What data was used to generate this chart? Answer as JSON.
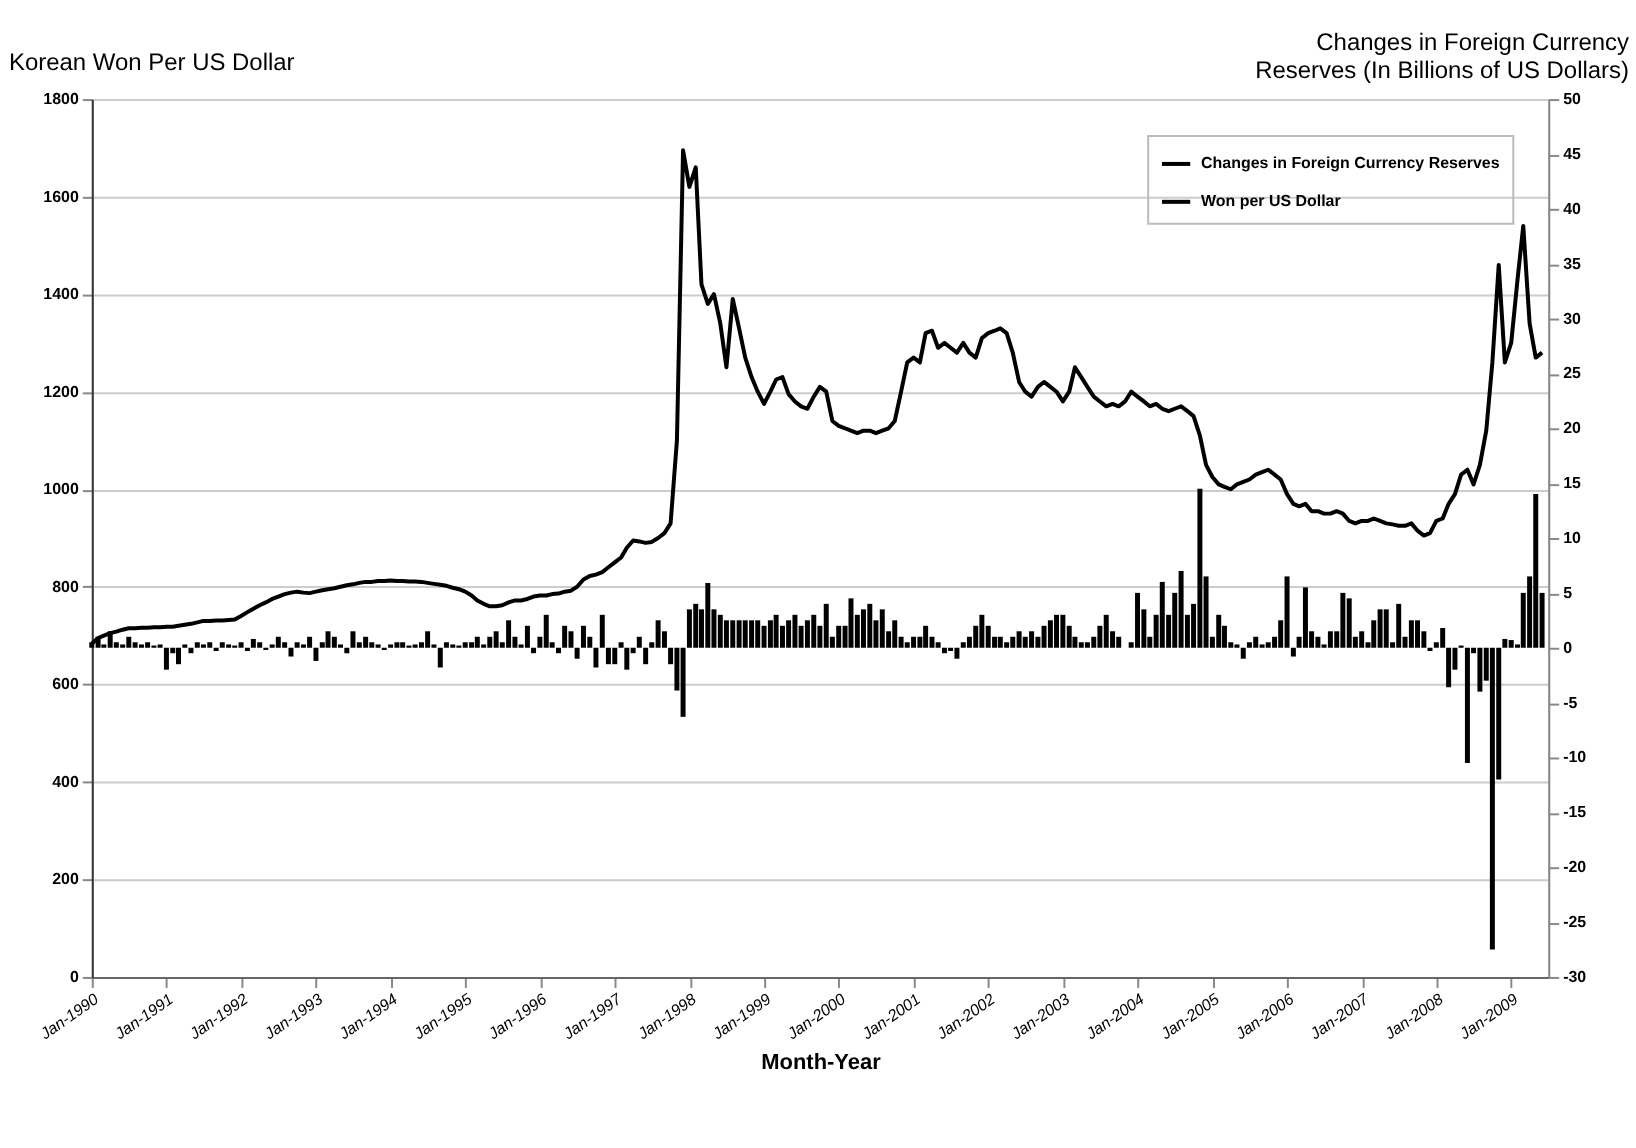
{
  "chart_data": {
    "type": "bar",
    "ylabel": "Korean Won Per US Dollar",
    "y2label": "Changes in Foreign Currency Reserves (In Billions of US Dollars)",
    "xlabel": "Month-Year",
    "x": [
      "1990-01",
      "1990-02",
      "1990-03",
      "1990-04",
      "1990-05",
      "1990-06",
      "1990-07",
      "1990-08",
      "1990-09",
      "1990-10",
      "1990-11",
      "1990-12",
      "1991-01",
      "1991-02",
      "1991-03",
      "1991-04",
      "1991-05",
      "1991-06",
      "1991-07",
      "1991-08",
      "1991-09",
      "1991-10",
      "1991-11",
      "1991-12",
      "1992-01",
      "1992-02",
      "1992-03",
      "1992-04",
      "1992-05",
      "1992-06",
      "1992-07",
      "1992-08",
      "1992-09",
      "1992-10",
      "1992-11",
      "1992-12",
      "1993-01",
      "1993-02",
      "1993-03",
      "1993-04",
      "1993-05",
      "1993-06",
      "1993-07",
      "1993-08",
      "1993-09",
      "1993-10",
      "1993-11",
      "1993-12",
      "1994-01",
      "1994-02",
      "1994-03",
      "1994-04",
      "1994-05",
      "1994-06",
      "1994-07",
      "1994-08",
      "1994-09",
      "1994-10",
      "1994-11",
      "1994-12",
      "1995-01",
      "1995-02",
      "1995-03",
      "1995-04",
      "1995-05",
      "1995-06",
      "1995-07",
      "1995-08",
      "1995-09",
      "1995-10",
      "1995-11",
      "1995-12",
      "1996-01",
      "1996-02",
      "1996-03",
      "1996-04",
      "1996-05",
      "1996-06",
      "1996-07",
      "1996-08",
      "1996-09",
      "1996-10",
      "1996-11",
      "1996-12",
      "1997-01",
      "1997-02",
      "1997-03",
      "1997-04",
      "1997-05",
      "1997-06",
      "1997-07",
      "1997-08",
      "1997-09",
      "1997-10",
      "1997-11",
      "1997-12",
      "1998-01",
      "1998-02",
      "1998-03",
      "1998-04",
      "1998-05",
      "1998-06",
      "1998-07",
      "1998-08",
      "1998-09",
      "1998-10",
      "1998-11",
      "1998-12",
      "1999-01",
      "1999-02",
      "1999-03",
      "1999-04",
      "1999-05",
      "1999-06",
      "1999-07",
      "1999-08",
      "1999-09",
      "1999-10",
      "1999-11",
      "1999-12",
      "2000-01",
      "2000-02",
      "2000-03",
      "2000-04",
      "2000-05",
      "2000-06",
      "2000-07",
      "2000-08",
      "2000-09",
      "2000-10",
      "2000-11",
      "2000-12",
      "2001-01",
      "2001-02",
      "2001-03",
      "2001-04",
      "2001-05",
      "2001-06",
      "2001-07",
      "2001-08",
      "2001-09",
      "2001-10",
      "2001-11",
      "2001-12",
      "2002-01",
      "2002-02",
      "2002-03",
      "2002-04",
      "2002-05",
      "2002-06",
      "2002-07",
      "2002-08",
      "2002-09",
      "2002-10",
      "2002-11",
      "2002-12",
      "2003-01",
      "2003-02",
      "2003-03",
      "2003-04",
      "2003-05",
      "2003-06",
      "2003-07",
      "2003-08",
      "2003-09",
      "2003-10",
      "2003-11",
      "2003-12",
      "2004-01",
      "2004-02",
      "2004-03",
      "2004-04",
      "2004-05",
      "2004-06",
      "2004-07",
      "2004-08",
      "2004-09",
      "2004-10",
      "2004-11",
      "2004-12",
      "2005-01",
      "2005-02",
      "2005-03",
      "2005-04",
      "2005-05",
      "2005-06",
      "2005-07",
      "2005-08",
      "2005-09",
      "2005-10",
      "2005-11",
      "2005-12",
      "2006-01",
      "2006-02",
      "2006-03",
      "2006-04",
      "2006-05",
      "2006-06",
      "2006-07",
      "2006-08",
      "2006-09",
      "2006-10",
      "2006-11",
      "2006-12",
      "2007-01",
      "2007-02",
      "2007-03",
      "2007-04",
      "2007-05",
      "2007-06",
      "2007-07",
      "2007-08",
      "2007-09",
      "2007-10",
      "2007-11",
      "2007-12",
      "2008-01",
      "2008-02",
      "2008-03",
      "2008-04",
      "2008-05",
      "2008-06",
      "2008-07",
      "2008-08",
      "2008-09",
      "2008-10",
      "2008-11",
      "2008-12",
      "2009-01",
      "2009-02",
      "2009-03",
      "2009-04",
      "2009-05",
      "2009-06"
    ],
    "series": [
      {
        "name": "Changes in Foreign Currency Reserves",
        "axis": "y2",
        "color": "#000000",
        "values": [
          0.5,
          1,
          0.3,
          1.5,
          0.5,
          0.3,
          1,
          0.5,
          0.3,
          0.5,
          0.2,
          0.3,
          -2,
          -0.5,
          -1.5,
          0.3,
          -0.5,
          0.5,
          0.3,
          0.5,
          -0.3,
          0.5,
          0.3,
          0.2,
          0.5,
          -0.3,
          0.8,
          0.5,
          -0.2,
          0.3,
          1,
          0.5,
          -0.8,
          0.5,
          0.3,
          1,
          -1.2,
          0.5,
          1.5,
          1,
          0.3,
          -0.5,
          1.5,
          0.5,
          1,
          0.5,
          0.3,
          -0.2,
          0.3,
          0.5,
          0.5,
          0.2,
          0.3,
          0.5,
          1.5,
          0.3,
          -1.8,
          0.5,
          0.3,
          0.2,
          0.5,
          0.5,
          1,
          0.3,
          1,
          1.5,
          0.5,
          2.5,
          1,
          0.3,
          2,
          -0.5,
          1,
          3,
          0.5,
          -0.5,
          2,
          1.5,
          -1,
          2,
          1,
          -1.8,
          3,
          -1.5,
          -1.5,
          0.5,
          -2,
          -0.5,
          1,
          -1.5,
          0.5,
          2.5,
          1.5,
          -1.5,
          -3.9,
          -6.3,
          3.5,
          4,
          3.5,
          5.9,
          3.5,
          3,
          2.5,
          2.5,
          2.5,
          2.5,
          2.5,
          2.5,
          2,
          2.5,
          3,
          2,
          2.5,
          3,
          2,
          2.5,
          3,
          2,
          4,
          1,
          2,
          2,
          4.5,
          3,
          3.5,
          4,
          2.5,
          3.5,
          1.5,
          2.5,
          1,
          0.5,
          1,
          1,
          2,
          1,
          0.5,
          -0.5,
          -0.3,
          -1,
          0.5,
          1,
          2,
          3,
          2,
          1,
          1,
          0.5,
          1,
          1.5,
          1,
          1.5,
          1,
          2,
          2.5,
          3,
          3,
          2,
          1,
          0.5,
          0.5,
          1,
          2,
          3,
          1.5,
          1,
          0,
          0.5,
          5,
          3.5,
          1,
          3,
          6,
          3,
          5,
          7,
          3,
          4,
          14.5,
          6.5,
          1,
          3,
          2,
          0.5,
          0.3,
          -1,
          0.5,
          1,
          0.3,
          0.5,
          1,
          2.5,
          6.5,
          -0.8,
          1,
          5.5,
          1.5,
          1,
          0.3,
          1.5,
          1.5,
          5,
          4.5,
          1,
          1.5,
          0.5,
          2.5,
          3.5,
          3.5,
          0.5,
          4,
          1,
          2.5,
          2.5,
          1.5,
          -0.3,
          0.5,
          1.8,
          -3.6,
          -2,
          0.2,
          -10.5,
          -0.5,
          -4,
          -3,
          -27.5,
          -12,
          0.8,
          0.7,
          0.3,
          5,
          6.5,
          14,
          5
        ]
      },
      {
        "name": "Won per US Dollar",
        "type": "line",
        "color": "#000000",
        "line_style": "solid",
        "values": [
          683,
          695,
          700,
          705,
          708,
          712,
          715,
          715,
          716,
          716,
          717,
          717,
          718,
          718,
          720,
          722,
          724,
          727,
          730,
          730,
          731,
          731,
          732,
          733,
          740,
          748,
          755,
          762,
          768,
          775,
          780,
          785,
          788,
          790,
          788,
          787,
          790,
          793,
          795,
          797,
          800,
          803,
          805,
          808,
          810,
          810,
          812,
          812,
          813,
          812,
          812,
          811,
          811,
          810,
          808,
          806,
          804,
          802,
          798,
          795,
          790,
          782,
          772,
          765,
          760,
          760,
          762,
          768,
          772,
          772,
          775,
          780,
          782,
          782,
          785,
          786,
          790,
          792,
          800,
          815,
          822,
          825,
          830,
          840,
          850,
          860,
          880,
          895,
          893,
          890,
          892,
          900,
          910,
          930,
          1100,
          1695,
          1620,
          1660,
          1420,
          1380,
          1400,
          1340,
          1250,
          1390,
          1330,
          1270,
          1230,
          1200,
          1175,
          1200,
          1225,
          1230,
          1195,
          1180,
          1170,
          1165,
          1190,
          1210,
          1200,
          1140,
          1130,
          1125,
          1120,
          1115,
          1120,
          1120,
          1115,
          1120,
          1125,
          1140,
          1200,
          1260,
          1270,
          1260,
          1320,
          1325,
          1290,
          1300,
          1290,
          1280,
          1300,
          1280,
          1270,
          1310,
          1320,
          1325,
          1330,
          1320,
          1280,
          1220,
          1200,
          1190,
          1210,
          1220,
          1210,
          1200,
          1180,
          1200,
          1250,
          1230,
          1210,
          1190,
          1180,
          1170,
          1175,
          1170,
          1180,
          1200,
          1190,
          1180,
          1170,
          1175,
          1165,
          1160,
          1165,
          1170,
          1160,
          1150,
          1110,
          1050,
          1025,
          1010,
          1005,
          1000,
          1010,
          1015,
          1020,
          1030,
          1035,
          1040,
          1030,
          1020,
          990,
          970,
          965,
          970,
          955,
          955,
          950,
          950,
          955,
          950,
          935,
          930,
          935,
          935,
          940,
          935,
          930,
          928,
          925,
          925,
          930,
          915,
          905,
          910,
          935,
          940,
          970,
          990,
          1030,
          1040,
          1010,
          1050,
          1120,
          1260,
          1460,
          1260,
          1300,
          1430,
          1540,
          1340,
          1270,
          1280
        ]
      }
    ],
    "xlim": [
      "1990-01",
      "2009-07"
    ],
    "xticks": [
      {
        "value": "1990-01",
        "label": "Jan-1990"
      },
      {
        "value": "1991-01",
        "label": "Jan-1991"
      },
      {
        "value": "1992-01",
        "label": "Jan-1992"
      },
      {
        "value": "1993-01",
        "label": "Jan-1993"
      },
      {
        "value": "1994-01",
        "label": "Jan-1994"
      },
      {
        "value": "1995-01",
        "label": "Jan-1995"
      },
      {
        "value": "1996-01",
        "label": "Jan-1996"
      },
      {
        "value": "1997-01",
        "label": "Jan-1997"
      },
      {
        "value": "1998-01",
        "label": "Jan-1998"
      },
      {
        "value": "1999-01",
        "label": "Jan-1999"
      },
      {
        "value": "2000-01",
        "label": "Jan-2000"
      },
      {
        "value": "2001-01",
        "label": "Jan-2001"
      },
      {
        "value": "2002-01",
        "label": "Jan-2002"
      },
      {
        "value": "2003-01",
        "label": "Jan-2003"
      },
      {
        "value": "2004-01",
        "label": "Jan-2004"
      },
      {
        "value": "2005-01",
        "label": "Jan-2005"
      },
      {
        "value": "2006-01",
        "label": "Jan-2006"
      },
      {
        "value": "2007-01",
        "label": "Jan-2007"
      },
      {
        "value": "2008-01",
        "label": "Jan-2008"
      },
      {
        "value": "2009-01",
        "label": "Jan-2009"
      }
    ],
    "ylim": [
      0,
      1800
    ],
    "yticks": [
      0,
      200,
      400,
      600,
      800,
      1000,
      1200,
      1400,
      1600,
      1800
    ],
    "y2lim": [
      -30,
      50
    ],
    "y2ticks": [
      -30,
      -25,
      -20,
      -15,
      -10,
      -5,
      0,
      5,
      10,
      15,
      20,
      25,
      30,
      35,
      40,
      45,
      50
    ],
    "grid": "y",
    "legend": "top right"
  }
}
